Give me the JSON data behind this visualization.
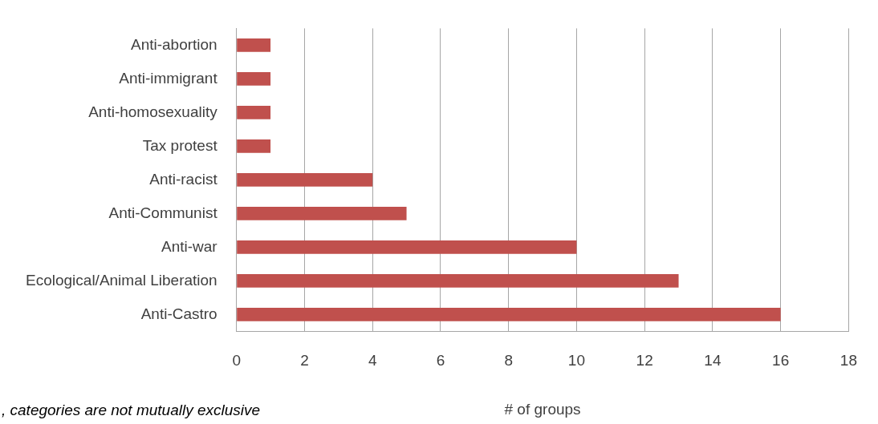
{
  "chart_data": {
    "type": "bar",
    "orientation": "horizontal",
    "xlabel": "# of groups",
    "categories": [
      "Anti-abortion",
      "Anti-immigrant",
      "Anti-homosexuality",
      "Tax protest",
      "Anti-racist",
      "Anti-Communist",
      "Anti-war",
      "Ecological/Animal Liberation",
      "Anti-Castro"
    ],
    "values": [
      1,
      1,
      1,
      1,
      4,
      5,
      10,
      13,
      16
    ],
    "color": "#c0504d",
    "xlim": [
      0,
      18
    ],
    "xticks": [
      0,
      2,
      4,
      6,
      8,
      10,
      12,
      14,
      16,
      18
    ],
    "grid": "x",
    "legend": false,
    "annotations": [
      ", categories are not mutually exclusive"
    ]
  }
}
